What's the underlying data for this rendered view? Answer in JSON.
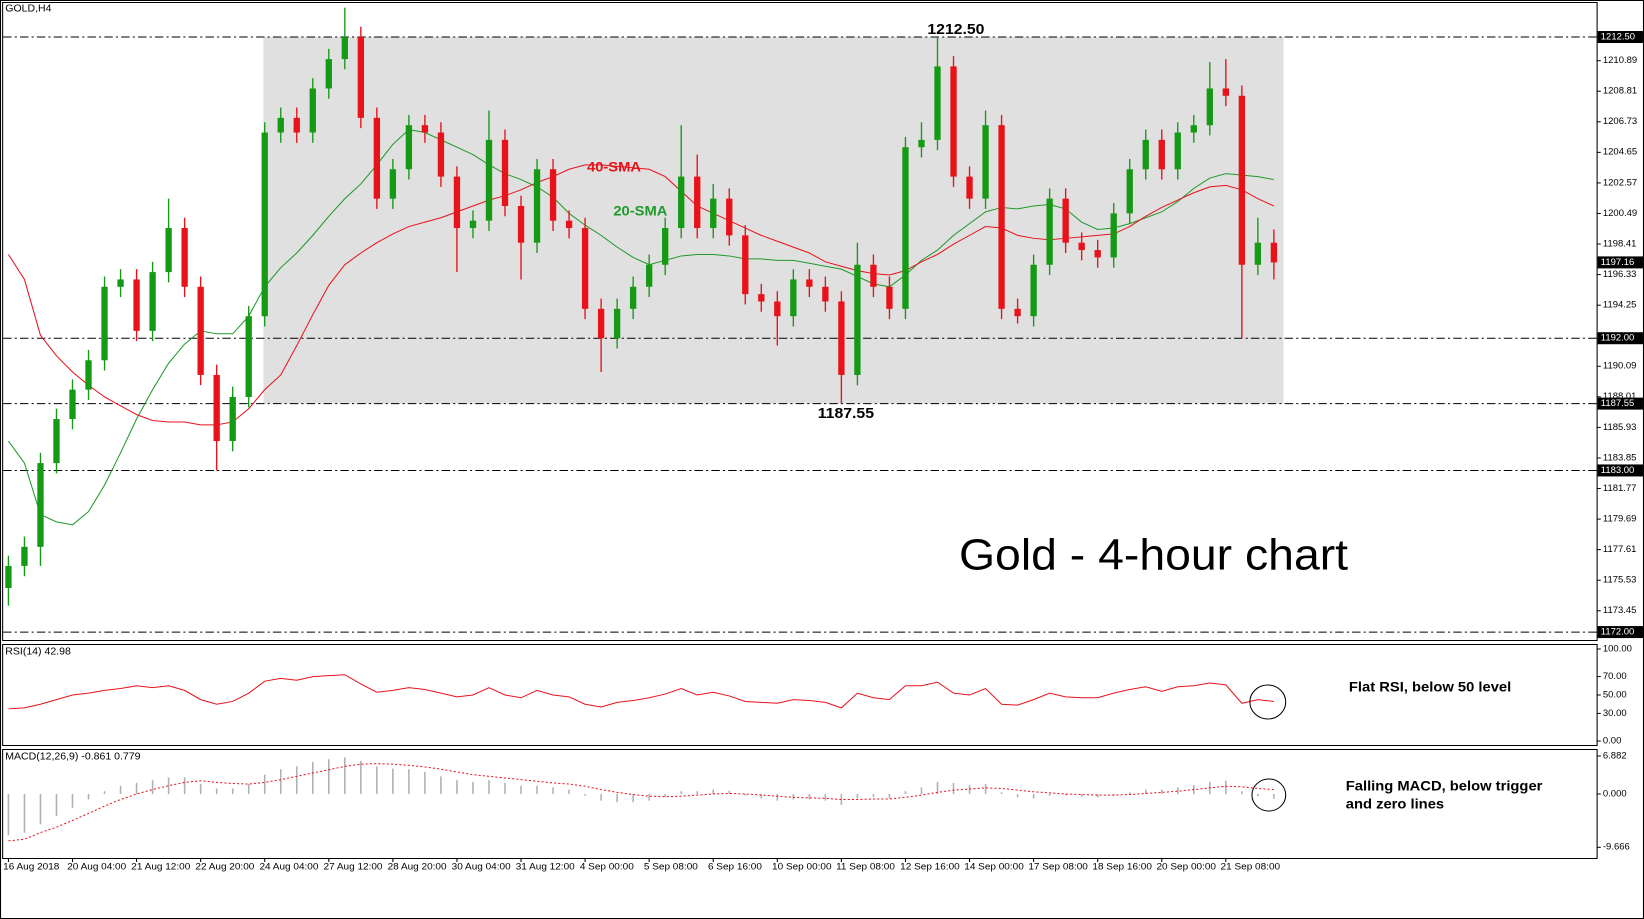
{
  "chart_data": [
    {
      "type": "candlestick",
      "title": "GOLD,H4",
      "annotation": "Gold - 4-hour chart",
      "categories": [
        "16 Aug 2018",
        null,
        null,
        null,
        "20 Aug 04:00",
        null,
        null,
        null,
        "21 Aug 12:00",
        null,
        null,
        null,
        "22 Aug 20:00",
        null,
        null,
        null,
        "24 Aug 04:00",
        null,
        null,
        null,
        "27 Aug 12:00",
        null,
        null,
        null,
        "28 Aug 20:00",
        null,
        null,
        null,
        "30 Aug 04:00",
        null,
        null,
        null,
        "31 Aug 12:00",
        null,
        null,
        null,
        "4 Sep 00:00",
        null,
        null,
        null,
        "5 Sep 08:00",
        null,
        null,
        null,
        "6 Sep 16:00",
        null,
        null,
        null,
        "10 Sep 00:00",
        null,
        null,
        null,
        "11 Sep 08:00",
        null,
        null,
        null,
        "12 Sep 16:00",
        null,
        null,
        null,
        "14 Sep 00:00",
        null,
        null,
        null,
        "17 Sep 08:00",
        null,
        null,
        null,
        "18 Sep 16:00",
        null,
        null,
        null,
        "20 Sep 00:00",
        null,
        null,
        null,
        "21 Sep 08:00",
        null,
        null,
        null
      ],
      "open": [
        1175.0,
        1176.5,
        1177.8,
        1183.5,
        1186.5,
        1188.5,
        1190.5,
        1195.5,
        1196.0,
        1192.5,
        1196.5,
        1199.5,
        1195.5,
        1189.5,
        1185.0,
        1188.0,
        1193.5,
        1206.0,
        1207.0,
        1206.0,
        1209.0,
        1211.0,
        1212.5,
        1207.0,
        1201.5,
        1203.5,
        1206.5,
        1206.0,
        1203.0,
        1199.5,
        1200.0,
        1205.5,
        1201.0,
        1198.5,
        1203.5,
        1200.0,
        1199.5,
        1194.0,
        1192.0,
        1194.0,
        1195.5,
        1197.0,
        1199.5,
        1203.0,
        1199.5,
        1201.5,
        1199.0,
        1195.0,
        1194.5,
        1193.5,
        1196.0,
        1195.5,
        1194.5,
        1189.5,
        1197.0,
        1195.5,
        1194.0,
        1205.0,
        1205.5,
        1210.5,
        1203.0,
        1201.5,
        1206.5,
        1194.0,
        1193.5,
        1197.0,
        1201.5,
        1198.5,
        1198.0,
        1197.5,
        1200.5,
        1203.5,
        1205.5,
        1203.5,
        1206.0,
        1206.5,
        1209.0,
        1208.5,
        1197.0,
        1198.5
      ],
      "high": [
        1177.2,
        1178.5,
        1184.2,
        1187.2,
        1189.2,
        1191.2,
        1196.2,
        1196.7,
        1196.7,
        1197.2,
        1201.5,
        1200.2,
        1196.2,
        1190.2,
        1188.7,
        1194.2,
        1206.7,
        1207.7,
        1207.7,
        1209.7,
        1211.7,
        1214.5,
        1213.2,
        1207.7,
        1204.2,
        1207.2,
        1207.2,
        1206.7,
        1203.7,
        1200.7,
        1207.5,
        1206.2,
        1201.7,
        1204.2,
        1204.2,
        1200.7,
        1200.2,
        1194.7,
        1194.7,
        1196.2,
        1197.7,
        1200.2,
        1206.5,
        1204.5,
        1202.5,
        1202.2,
        1199.7,
        1195.7,
        1195.2,
        1196.7,
        1196.7,
        1196.2,
        1195.2,
        1198.5,
        1197.7,
        1196.2,
        1205.7,
        1206.7,
        1212.5,
        1211.2,
        1203.7,
        1207.5,
        1207.2,
        1194.7,
        1197.7,
        1202.2,
        1202.2,
        1199.2,
        1198.7,
        1201.2,
        1204.2,
        1206.2,
        1206.2,
        1206.7,
        1207.2,
        1210.8,
        1211.0,
        1209.2,
        1200.2,
        1199.4
      ],
      "low": [
        1173.8,
        1175.8,
        1176.5,
        1182.8,
        1185.8,
        1187.8,
        1189.8,
        1194.8,
        1191.8,
        1191.8,
        1195.8,
        1194.8,
        1188.8,
        1183.0,
        1184.3,
        1187.3,
        1192.8,
        1205.3,
        1205.3,
        1205.3,
        1208.3,
        1210.3,
        1206.3,
        1200.8,
        1200.8,
        1202.8,
        1205.3,
        1202.3,
        1196.5,
        1198.8,
        1199.3,
        1200.3,
        1196.0,
        1197.8,
        1199.3,
        1198.8,
        1193.3,
        1189.7,
        1191.3,
        1193.3,
        1194.8,
        1196.3,
        1198.8,
        1198.8,
        1198.8,
        1198.3,
        1194.3,
        1193.8,
        1191.5,
        1192.8,
        1194.8,
        1193.8,
        1187.55,
        1188.8,
        1194.8,
        1193.3,
        1193.3,
        1204.3,
        1204.8,
        1202.3,
        1200.8,
        1200.8,
        1193.3,
        1193.0,
        1192.8,
        1196.3,
        1197.8,
        1197.3,
        1196.8,
        1196.8,
        1199.8,
        1202.8,
        1202.8,
        1202.8,
        1205.3,
        1205.8,
        1207.8,
        1192.0,
        1196.3,
        1196.0
      ],
      "close": [
        1176.5,
        1177.8,
        1183.5,
        1186.5,
        1188.5,
        1190.5,
        1195.5,
        1196.0,
        1192.5,
        1196.5,
        1199.5,
        1195.5,
        1189.5,
        1185.0,
        1188.0,
        1193.5,
        1206.0,
        1207.0,
        1206.0,
        1209.0,
        1211.0,
        1212.5,
        1207.0,
        1201.5,
        1203.5,
        1206.5,
        1206.0,
        1203.0,
        1199.5,
        1200.0,
        1205.5,
        1201.0,
        1198.5,
        1203.5,
        1200.0,
        1199.5,
        1194.0,
        1192.0,
        1194.0,
        1195.5,
        1197.0,
        1199.5,
        1203.0,
        1199.5,
        1201.5,
        1199.0,
        1195.0,
        1194.5,
        1193.5,
        1196.0,
        1195.5,
        1194.5,
        1189.5,
        1197.0,
        1195.5,
        1194.0,
        1205.0,
        1205.5,
        1210.5,
        1203.0,
        1201.5,
        1206.5,
        1194.0,
        1193.5,
        1197.0,
        1201.5,
        1198.5,
        1198.0,
        1197.5,
        1200.5,
        1203.5,
        1205.5,
        1203.5,
        1206.0,
        1206.5,
        1209.0,
        1208.5,
        1197.0,
        1198.5,
        1197.16
      ],
      "up_color": "#169a16",
      "down_color": "#e8121a",
      "overlays": [
        {
          "name": "20-SMA",
          "color": "#1f9a2a",
          "values": [
            1185.0,
            1183.5,
            1180.0,
            1179.5,
            1179.3,
            1180.2,
            1182.0,
            1184.2,
            1186.5,
            1188.5,
            1190.3,
            1191.6,
            1192.5,
            1192.3,
            1192.3,
            1193.5,
            1195.5,
            1196.8,
            1197.8,
            1199.0,
            1200.3,
            1201.5,
            1202.5,
            1203.8,
            1205.2,
            1206.2,
            1206.0,
            1205.5,
            1205.0,
            1204.5,
            1203.8,
            1203.2,
            1202.8,
            1202.3,
            1201.6,
            1200.5,
            1199.7,
            1199.0,
            1198.2,
            1197.5,
            1197.0,
            1197.3,
            1197.6,
            1197.7,
            1197.7,
            1197.6,
            1197.4,
            1197.4,
            1197.3,
            1197.3,
            1197.1,
            1196.9,
            1196.7,
            1196.2,
            1195.7,
            1195.5,
            1196.3,
            1197.3,
            1198.0,
            1199.0,
            1199.8,
            1200.6,
            1200.9,
            1200.8,
            1201.0,
            1201.1,
            1200.8,
            1199.9,
            1199.4,
            1199.5,
            1199.8,
            1200.2,
            1200.6,
            1201.3,
            1202.2,
            1202.9,
            1203.2,
            1203.1,
            1203.0,
            1202.8
          ]
        },
        {
          "name": "40-SMA",
          "color": "#e8121a",
          "values": [
            1197.7,
            1196.0,
            1192.2,
            1190.8,
            1189.7,
            1188.8,
            1188.0,
            1187.4,
            1186.8,
            1186.4,
            1186.3,
            1186.3,
            1186.1,
            1186.1,
            1186.3,
            1187.2,
            1188.5,
            1189.5,
            1191.5,
            1193.6,
            1195.6,
            1197.0,
            1197.8,
            1198.5,
            1199.1,
            1199.6,
            1199.9,
            1200.2,
            1200.6,
            1201.0,
            1201.4,
            1201.7,
            1202.1,
            1202.6,
            1203.0,
            1203.5,
            1203.8,
            1203.8,
            1203.7,
            1203.6,
            1203.5,
            1203.0,
            1202.0,
            1201.0,
            1200.5,
            1200.0,
            1199.5,
            1199.0,
            1198.6,
            1198.2,
            1197.8,
            1197.2,
            1196.9,
            1196.6,
            1196.4,
            1196.3,
            1196.6,
            1197.2,
            1197.7,
            1198.4,
            1199.0,
            1199.6,
            1199.5,
            1199.0,
            1198.8,
            1198.7,
            1198.8,
            1198.9,
            1199.0,
            1199.1,
            1199.6,
            1200.3,
            1200.9,
            1201.4,
            1201.9,
            1202.3,
            1202.4,
            1202.1,
            1201.5,
            1201.0
          ]
        }
      ],
      "levels": [
        {
          "value": 1212.5,
          "label": "1212.50"
        },
        {
          "value": 1192,
          "label": "1192.00"
        },
        {
          "value": 1187.55,
          "label": "1187.55"
        },
        {
          "value": 1183,
          "label": "1183.00"
        },
        {
          "value": 1172,
          "label": "1172.00"
        }
      ],
      "last_price": {
        "value": 1197.16,
        "label": "1197.16"
      },
      "ylim": [
        1171.46,
        1215.02
      ],
      "yticks": [
        1173.45,
        1175.53,
        1177.61,
        1179.69,
        1181.77,
        1183.85,
        1185.93,
        1188.01,
        1190.09,
        1194.25,
        1196.33,
        1198.41,
        1200.49,
        1202.57,
        1204.65,
        1206.73,
        1208.81,
        1210.89
      ]
    },
    {
      "type": "line",
      "title": "RSI(14) 42.98",
      "annotation": "Flat RSI, below 50 level",
      "color": "#e8121a",
      "values": [
        35,
        36,
        40,
        45,
        50,
        52,
        55,
        57,
        60,
        58,
        60,
        55,
        45,
        40,
        43,
        52,
        65,
        68,
        66,
        70,
        71,
        72,
        62,
        53,
        55,
        58,
        56,
        52,
        48,
        50,
        58,
        50,
        47,
        55,
        50,
        48,
        40,
        37,
        42,
        44,
        47,
        51,
        57,
        50,
        53,
        49,
        43,
        42,
        41,
        45,
        44,
        42,
        36,
        52,
        47,
        45,
        60,
        60,
        64,
        52,
        50,
        57,
        40,
        39,
        45,
        52,
        48,
        47,
        47,
        52,
        56,
        59,
        54,
        59,
        60,
        63,
        61,
        41,
        45,
        42.98
      ],
      "ylim": [
        -4.3,
        104.3
      ],
      "yticks": [
        {
          "value": 0,
          "label": "0.00"
        },
        {
          "value": 30,
          "label": "30.00"
        },
        {
          "value": 50,
          "label": "50.00"
        },
        {
          "value": 70,
          "label": "70.00"
        },
        {
          "value": 100,
          "label": "100.00"
        }
      ]
    },
    {
      "type": "macd",
      "title": "MACD(12,26,9) -0.861 0.779",
      "annotation": [
        "Falling MACD, below trigger",
        "and zero lines"
      ],
      "histogram": {
        "color": "#b0b0b0",
        "values": [
          -7.5,
          -7.0,
          -5.5,
          -4.0,
          -2.5,
          -1.0,
          0.5,
          1.5,
          2.0,
          2.5,
          3.0,
          3.0,
          1.8,
          1.0,
          1.0,
          1.8,
          3.5,
          4.5,
          5.0,
          5.8,
          6.3,
          6.6,
          6.0,
          5.0,
          4.6,
          4.5,
          4.0,
          3.2,
          2.5,
          2.2,
          2.5,
          2.0,
          1.5,
          1.5,
          1.2,
          0.8,
          -0.3,
          -1.2,
          -1.5,
          -1.5,
          -1.2,
          -0.5,
          0.5,
          0.5,
          0.8,
          0.6,
          -0.3,
          -0.8,
          -1.2,
          -1.0,
          -1.0,
          -1.2,
          -2.0,
          -0.8,
          -0.5,
          -0.8,
          0.5,
          1.2,
          2.2,
          2.0,
          1.6,
          1.8,
          0.3,
          -0.6,
          -0.8,
          -0.3,
          -0.3,
          -0.5,
          -0.6,
          -0.2,
          0.3,
          0.8,
          0.8,
          1.2,
          1.6,
          2.2,
          2.4,
          0.5,
          -0.4,
          -0.861
        ]
      },
      "signal": {
        "color": "#e8121a",
        "values": [
          -8.5,
          -8.2,
          -7.0,
          -6.0,
          -4.8,
          -3.5,
          -2.2,
          -1.0,
          0.0,
          0.8,
          1.5,
          2.1,
          2.4,
          2.1,
          1.9,
          1.8,
          2.1,
          2.6,
          3.2,
          3.8,
          4.4,
          5.0,
          5.4,
          5.5,
          5.4,
          5.2,
          4.9,
          4.5,
          4.0,
          3.5,
          3.2,
          2.9,
          2.6,
          2.3,
          2.0,
          1.8,
          1.4,
          0.8,
          0.3,
          -0.1,
          -0.4,
          -0.5,
          -0.4,
          -0.2,
          0.0,
          0.1,
          0.0,
          -0.2,
          -0.4,
          -0.6,
          -0.7,
          -0.8,
          -1.0,
          -1.0,
          -0.9,
          -0.9,
          -0.6,
          -0.2,
          0.3,
          0.7,
          0.9,
          1.1,
          1.0,
          0.7,
          0.4,
          0.2,
          0.0,
          -0.1,
          -0.2,
          -0.2,
          -0.1,
          0.1,
          0.3,
          0.5,
          0.8,
          1.1,
          1.4,
          1.3,
          1.0,
          0.779
        ]
      },
      "ylim": [
        -11.6,
        7.97
      ],
      "yticks": [
        -9.666,
        {
          "value": 0,
          "label": "0.000"
        },
        6.882
      ]
    }
  ]
}
